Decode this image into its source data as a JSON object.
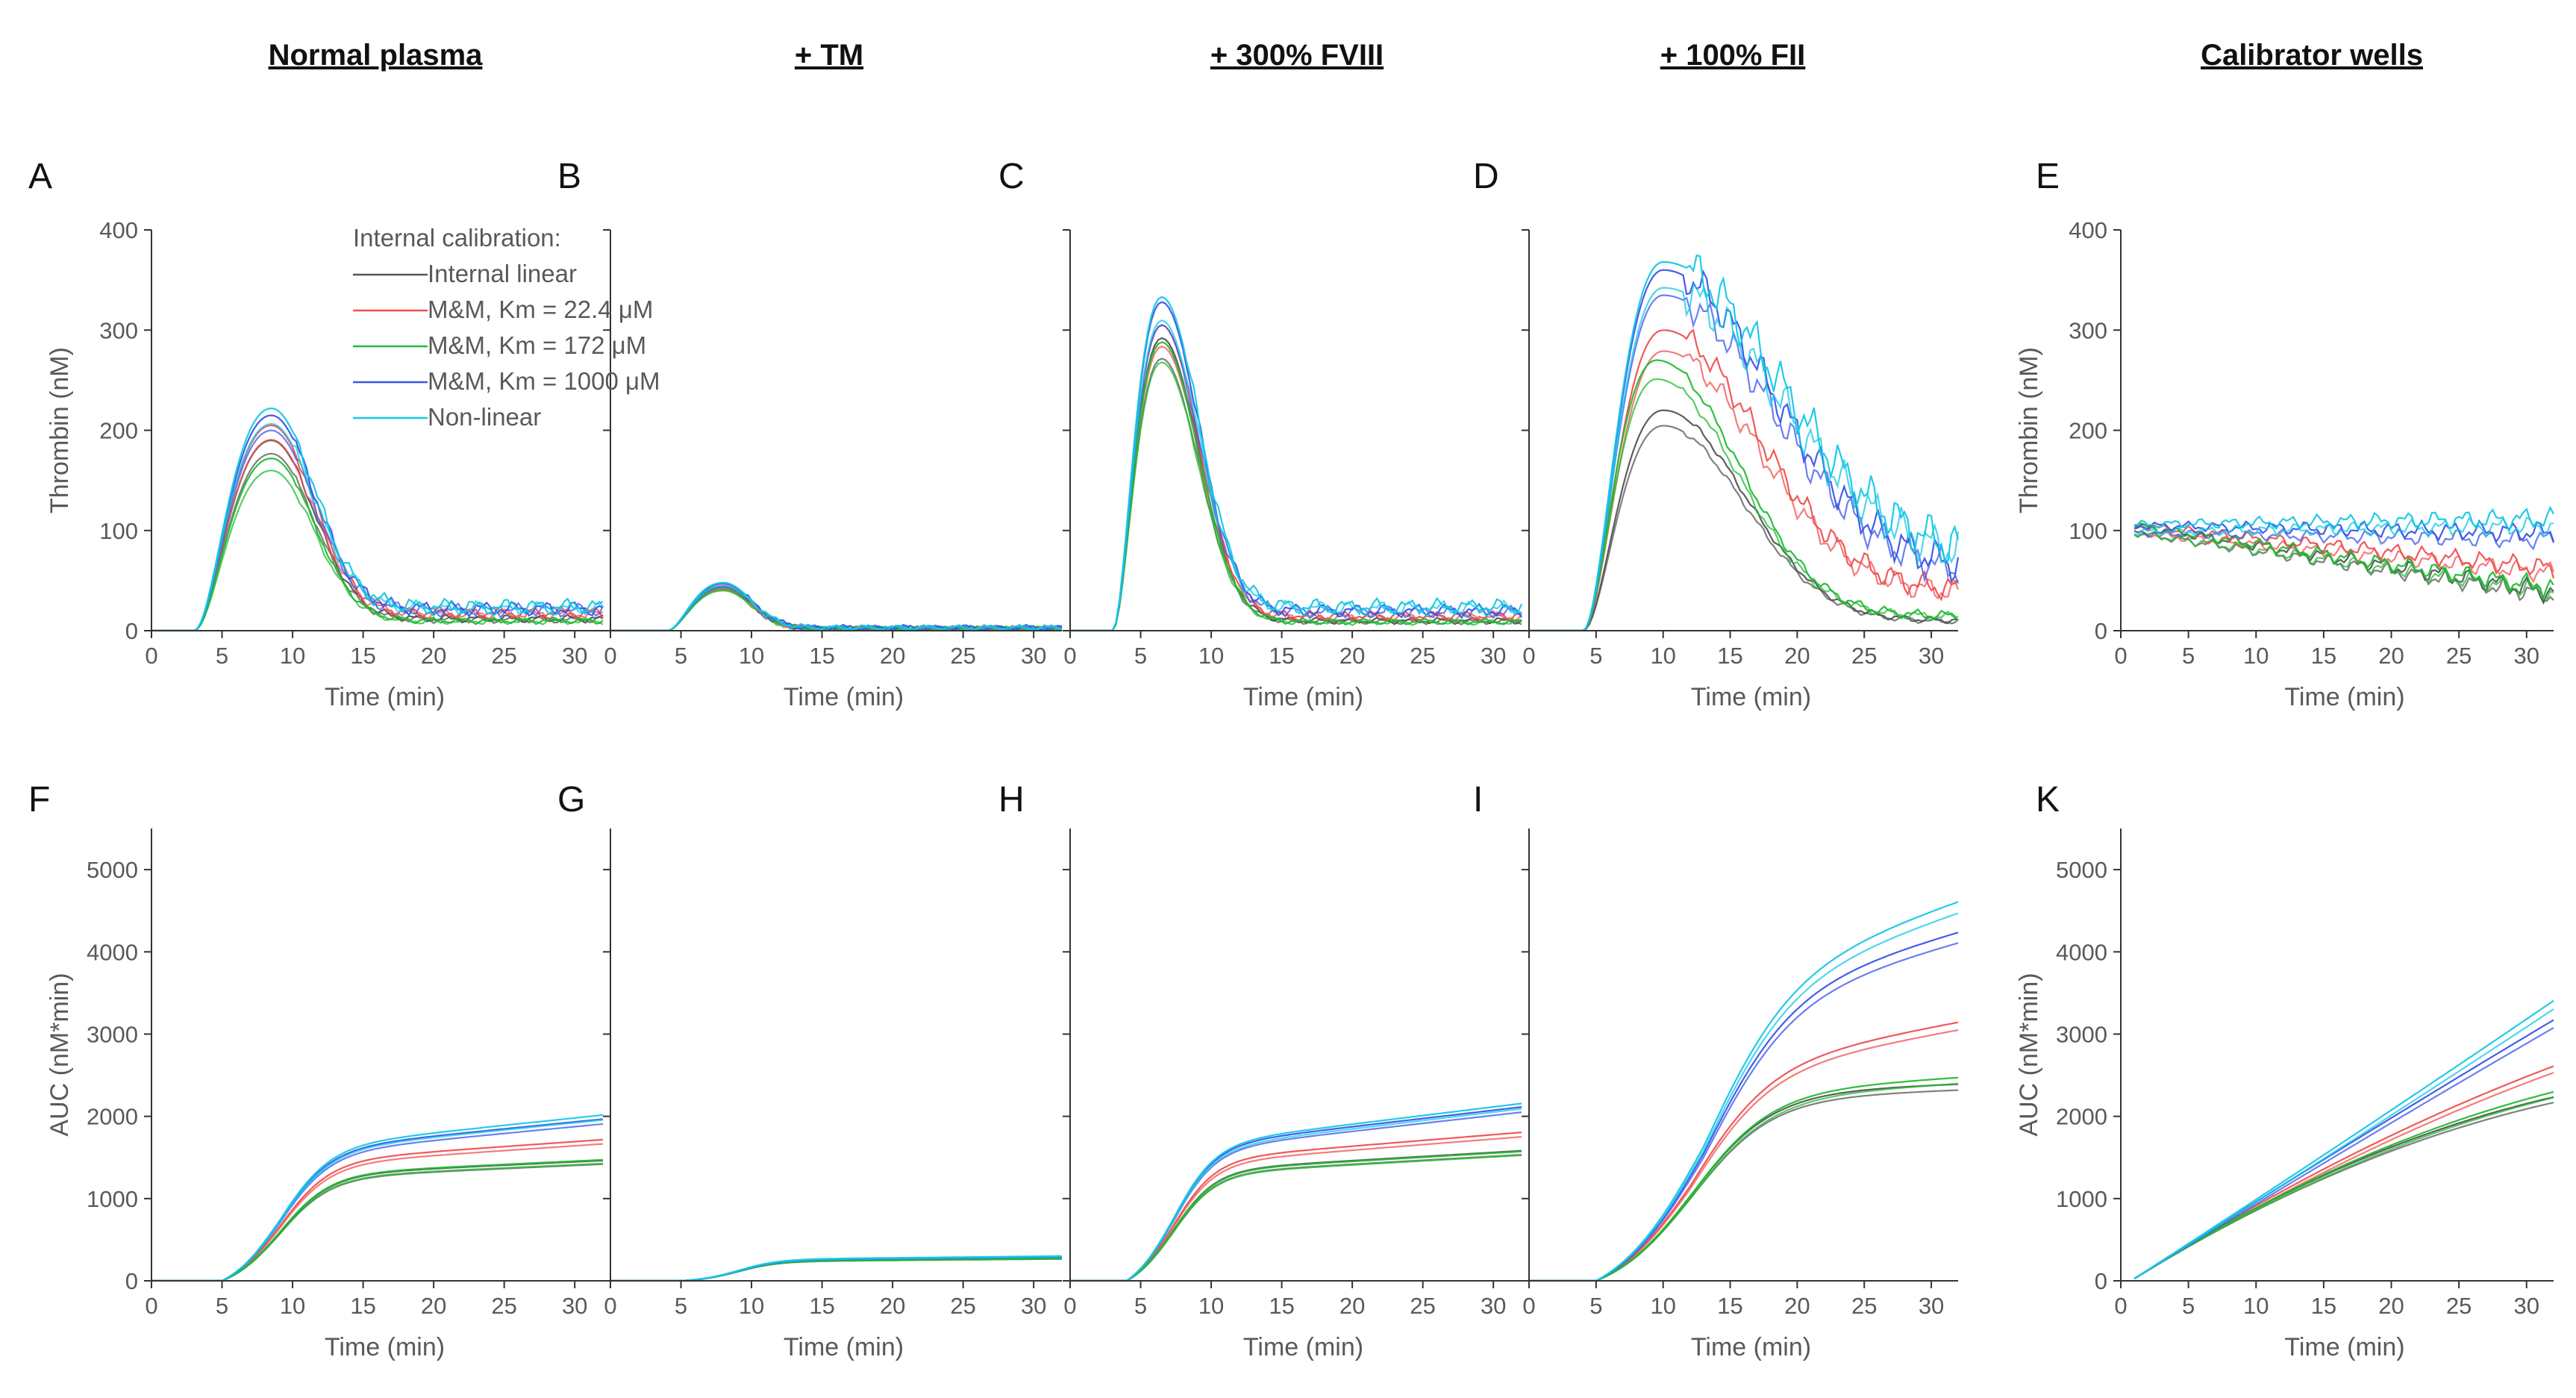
{
  "colors": {
    "internal_linear": "#555555",
    "mm_22_4": "#f05050",
    "mm_172": "#22bb33",
    "mm_1000": "#3a55e8",
    "non_linear": "#14c8e6"
  },
  "columns": [
    {
      "id": "normal",
      "title": "Normal plasma"
    },
    {
      "id": "tm",
      "title": "+ TM"
    },
    {
      "id": "fviii",
      "title": "+ 300% FVIII"
    },
    {
      "id": "fii",
      "title": "+ 100% FII"
    },
    {
      "id": "cal",
      "title": "Calibrator wells"
    }
  ],
  "legend": {
    "title": "Internal calibration:",
    "entries": [
      {
        "label": "Internal linear",
        "color": "#555555"
      },
      {
        "label": "M&M, Km = 22.4 μM",
        "color": "#f05050"
      },
      {
        "label": "M&M, Km = 172 μM",
        "color": "#22bb33"
      },
      {
        "label": "M&M, Km = 1000 μM",
        "color": "#3a55e8"
      },
      {
        "label": "Non-linear",
        "color": "#14c8e6"
      }
    ]
  },
  "chart_data": [
    {
      "panel": "A",
      "type": "line",
      "title": "Normal plasma",
      "xlabel": "Time (min)",
      "ylabel": "Thrombin (nM)",
      "xlim": [
        0,
        32
      ],
      "ylim": [
        0,
        400
      ],
      "xticks": [
        0,
        5,
        10,
        15,
        20,
        25,
        30
      ],
      "yticks": [
        0,
        100,
        200,
        300,
        400
      ],
      "show_yticks": true,
      "series": [
        {
          "name": "Internal linear",
          "color": "#555555",
          "kind": "peak",
          "peak": 190,
          "t0": 3,
          "tp": 8.5,
          "tail": 12,
          "rise": 3.2,
          "decay": 3.0
        },
        {
          "name": "M&M, Km = 22.4 μM",
          "color": "#f05050",
          "kind": "peak",
          "peak": 205,
          "t0": 3,
          "tp": 8.5,
          "tail": 18,
          "rise": 3.2,
          "decay": 3.0
        },
        {
          "name": "M&M, Km = 172 μM",
          "color": "#22bb33",
          "kind": "peak",
          "peak": 172,
          "t0": 3,
          "tp": 8.5,
          "tail": 10,
          "rise": 3.2,
          "decay": 3.0
        },
        {
          "name": "M&M, Km = 1000 μM",
          "color": "#3a55e8",
          "kind": "peak",
          "peak": 215,
          "t0": 3,
          "tp": 8.5,
          "tail": 22,
          "rise": 3.2,
          "decay": 3.0
        },
        {
          "name": "Non-linear",
          "color": "#14c8e6",
          "kind": "peak",
          "peak": 222,
          "t0": 3,
          "tp": 8.5,
          "tail": 24,
          "rise": 3.2,
          "decay": 3.0
        }
      ]
    },
    {
      "panel": "B",
      "type": "line",
      "title": "+ TM",
      "xlabel": "Time (min)",
      "ylabel": "",
      "xlim": [
        0,
        32
      ],
      "ylim": [
        0,
        400
      ],
      "xticks": [
        0,
        5,
        10,
        15,
        20,
        25,
        30
      ],
      "yticks": [
        0,
        100,
        200,
        300,
        400
      ],
      "show_yticks": false,
      "series": [
        {
          "name": "Internal linear",
          "color": "#555555",
          "kind": "peak",
          "peak": 44,
          "t0": 4,
          "tp": 8,
          "tail": 2,
          "rise": 2.5,
          "decay": 2.0
        },
        {
          "name": "M&M, Km = 22.4 μM",
          "color": "#f05050",
          "kind": "peak",
          "peak": 45,
          "t0": 4,
          "tp": 8,
          "tail": 2,
          "rise": 2.5,
          "decay": 2.0
        },
        {
          "name": "M&M, Km = 172 μM",
          "color": "#22bb33",
          "kind": "peak",
          "peak": 43,
          "t0": 4,
          "tp": 8,
          "tail": 2,
          "rise": 2.5,
          "decay": 2.0
        },
        {
          "name": "M&M, Km = 1000 μM",
          "color": "#3a55e8",
          "kind": "peak",
          "peak": 47,
          "t0": 4,
          "tp": 8,
          "tail": 3,
          "rise": 2.5,
          "decay": 2.0
        },
        {
          "name": "Non-linear",
          "color": "#14c8e6",
          "kind": "peak",
          "peak": 48,
          "t0": 4,
          "tp": 8,
          "tail": 3,
          "rise": 2.5,
          "decay": 2.0
        }
      ]
    },
    {
      "panel": "C",
      "type": "line",
      "title": "+ 300% FVIII",
      "xlabel": "Time (min)",
      "ylabel": "",
      "xlim": [
        0,
        32
      ],
      "ylim": [
        0,
        400
      ],
      "xticks": [
        0,
        5,
        10,
        15,
        20,
        25,
        30
      ],
      "yticks": [
        0,
        100,
        200,
        300,
        400
      ],
      "show_yticks": false,
      "series": [
        {
          "name": "Internal linear",
          "color": "#555555",
          "kind": "peak",
          "peak": 292,
          "t0": 3,
          "tp": 6.5,
          "tail": 10,
          "rise": 2.2,
          "decay": 2.6
        },
        {
          "name": "M&M, Km = 22.4 μM",
          "color": "#f05050",
          "kind": "peak",
          "peak": 305,
          "t0": 3,
          "tp": 6.5,
          "tail": 15,
          "rise": 2.2,
          "decay": 2.6
        },
        {
          "name": "M&M, Km = 172 μM",
          "color": "#22bb33",
          "kind": "peak",
          "peak": 288,
          "t0": 3,
          "tp": 6.5,
          "tail": 9,
          "rise": 2.2,
          "decay": 2.6
        },
        {
          "name": "M&M, Km = 1000 μM",
          "color": "#3a55e8",
          "kind": "peak",
          "peak": 328,
          "t0": 3,
          "tp": 6.5,
          "tail": 20,
          "rise": 2.2,
          "decay": 2.6
        },
        {
          "name": "Non-linear",
          "color": "#14c8e6",
          "kind": "peak",
          "peak": 333,
          "t0": 3,
          "tp": 6.5,
          "tail": 24,
          "rise": 2.2,
          "decay": 2.6
        }
      ]
    },
    {
      "panel": "D",
      "type": "line",
      "title": "+ 100% FII",
      "xlabel": "Time (min)",
      "ylabel": "",
      "xlim": [
        0,
        32
      ],
      "ylim": [
        0,
        400
      ],
      "xticks": [
        0,
        5,
        10,
        15,
        20,
        25,
        30
      ],
      "yticks": [
        0,
        100,
        200,
        300,
        400
      ],
      "show_yticks": false,
      "series": [
        {
          "name": "Internal linear",
          "color": "#555555",
          "kind": "peak",
          "peak": 220,
          "t0": 4,
          "tp": 10,
          "tail": 10,
          "rise": 3.5,
          "decay": 6.0
        },
        {
          "name": "M&M, Km = 22.4 μM",
          "color": "#f05050",
          "kind": "peak",
          "peak": 300,
          "t0": 4,
          "tp": 10,
          "tail": 40,
          "rise": 3.5,
          "decay": 7.0
        },
        {
          "name": "M&M, Km = 172 μM",
          "color": "#22bb33",
          "kind": "peak",
          "peak": 270,
          "t0": 4,
          "tp": 9.5,
          "tail": 15,
          "rise": 3.5,
          "decay": 6.0
        },
        {
          "name": "M&M, Km = 1000 μM",
          "color": "#3a55e8",
          "kind": "peak",
          "peak": 360,
          "t0": 4,
          "tp": 10,
          "tail": 60,
          "rise": 3.5,
          "decay": 8.0
        },
        {
          "name": "Non-linear",
          "color": "#14c8e6",
          "kind": "peak",
          "peak": 368,
          "t0": 4,
          "tp": 10,
          "tail": 75,
          "rise": 3.5,
          "decay": 8.5
        }
      ]
    },
    {
      "panel": "E",
      "type": "line",
      "title": "Calibrator wells",
      "xlabel": "Time (min)",
      "ylabel": "Thrombin (nM)",
      "xlim": [
        0,
        32
      ],
      "ylim": [
        0,
        400
      ],
      "xticks": [
        0,
        5,
        10,
        15,
        20,
        25,
        30
      ],
      "yticks": [
        0,
        100,
        200,
        300,
        400
      ],
      "show_yticks": true,
      "series": [
        {
          "name": "Internal linear",
          "color": "#555555",
          "kind": "linear",
          "start": 105,
          "end": 38,
          "x0": 1
        },
        {
          "name": "M&M, Km = 22.4 μM",
          "color": "#f05050",
          "kind": "linear",
          "start": 105,
          "end": 62,
          "x0": 1
        },
        {
          "name": "M&M, Km = 172 μM",
          "color": "#22bb33",
          "kind": "linear",
          "start": 105,
          "end": 42,
          "x0": 1
        },
        {
          "name": "M&M, Km = 1000 μM",
          "color": "#3a55e8",
          "kind": "linear",
          "start": 105,
          "end": 98,
          "x0": 1
        },
        {
          "name": "Non-linear",
          "color": "#14c8e6",
          "kind": "linear",
          "start": 106,
          "end": 112,
          "x0": 1
        }
      ]
    },
    {
      "panel": "F",
      "type": "line",
      "title": "Normal plasma",
      "xlabel": "Time (min)",
      "ylabel": "AUC (nM*min)",
      "xlim": [
        0,
        32
      ],
      "ylim": [
        0,
        5500
      ],
      "xticks": [
        0,
        5,
        10,
        15,
        20,
        25,
        30
      ],
      "yticks": [
        0,
        1000,
        2000,
        3000,
        4000,
        5000
      ],
      "show_yticks": true,
      "series": [
        {
          "name": "Internal linear",
          "color": "#555555",
          "kind": "auc",
          "final": 1420,
          "t0": 5,
          "t50": 9.0,
          "k": 0.55,
          "slope": 8
        },
        {
          "name": "M&M, Km = 22.4 μM",
          "color": "#f05050",
          "kind": "auc",
          "final": 1600,
          "t0": 5,
          "t50": 9.0,
          "k": 0.55,
          "slope": 12
        },
        {
          "name": "M&M, Km = 172 μM",
          "color": "#22bb33",
          "kind": "auc",
          "final": 1430,
          "t0": 5,
          "t50": 9.0,
          "k": 0.55,
          "slope": 8
        },
        {
          "name": "M&M, Km = 1000 μM",
          "color": "#3a55e8",
          "kind": "auc",
          "final": 1750,
          "t0": 5,
          "t50": 9.0,
          "k": 0.55,
          "slope": 17
        },
        {
          "name": "Non-linear",
          "color": "#14c8e6",
          "kind": "auc",
          "final": 1780,
          "t0": 5,
          "t50": 9.0,
          "k": 0.55,
          "slope": 18
        }
      ]
    },
    {
      "panel": "G",
      "type": "line",
      "title": "+ TM",
      "xlabel": "Time (min)",
      "ylabel": "",
      "xlim": [
        0,
        32
      ],
      "ylim": [
        0,
        5500
      ],
      "xticks": [
        0,
        5,
        10,
        15,
        20,
        25,
        30
      ],
      "yticks": [
        0,
        1000,
        2000,
        3000,
        4000,
        5000
      ],
      "show_yticks": false,
      "series": [
        {
          "name": "Internal linear",
          "color": "#555555",
          "kind": "auc",
          "final": 255,
          "t0": 5,
          "t50": 9.0,
          "k": 0.7,
          "slope": 1.5
        },
        {
          "name": "M&M, Km = 22.4 μM",
          "color": "#f05050",
          "kind": "auc",
          "final": 260,
          "t0": 5,
          "t50": 9.0,
          "k": 0.7,
          "slope": 1.5
        },
        {
          "name": "M&M, Km = 172 μM",
          "color": "#22bb33",
          "kind": "auc",
          "final": 255,
          "t0": 5,
          "t50": 9.0,
          "k": 0.7,
          "slope": 1.5
        },
        {
          "name": "M&M, Km = 1000 μM",
          "color": "#3a55e8",
          "kind": "auc",
          "final": 270,
          "t0": 5,
          "t50": 9.0,
          "k": 0.7,
          "slope": 1.8
        },
        {
          "name": "Non-linear",
          "color": "#14c8e6",
          "kind": "auc",
          "final": 275,
          "t0": 5,
          "t50": 9.0,
          "k": 0.7,
          "slope": 1.8
        }
      ]
    },
    {
      "panel": "H",
      "type": "line",
      "title": "+ 300% FVIII",
      "xlabel": "Time (min)",
      "ylabel": "",
      "xlim": [
        0,
        32
      ],
      "ylim": [
        0,
        5500
      ],
      "xticks": [
        0,
        5,
        10,
        15,
        20,
        25,
        30
      ],
      "yticks": [
        0,
        1000,
        2000,
        3000,
        4000,
        5000
      ],
      "show_yticks": false,
      "series": [
        {
          "name": "Internal linear",
          "color": "#555555",
          "kind": "auc",
          "final": 1500,
          "t0": 4,
          "t50": 7.2,
          "k": 0.65,
          "slope": 10
        },
        {
          "name": "M&M, Km = 22.4 μM",
          "color": "#f05050",
          "kind": "auc",
          "final": 1640,
          "t0": 4,
          "t50": 7.2,
          "k": 0.65,
          "slope": 14
        },
        {
          "name": "M&M, Km = 172 μM",
          "color": "#22bb33",
          "kind": "auc",
          "final": 1490,
          "t0": 4,
          "t50": 7.2,
          "k": 0.65,
          "slope": 10
        },
        {
          "name": "M&M, Km = 1000 μM",
          "color": "#3a55e8",
          "kind": "auc",
          "final": 1820,
          "t0": 4,
          "t50": 7.2,
          "k": 0.65,
          "slope": 20
        },
        {
          "name": "Non-linear",
          "color": "#14c8e6",
          "kind": "auc",
          "final": 1840,
          "t0": 4,
          "t50": 7.2,
          "k": 0.65,
          "slope": 21
        }
      ]
    },
    {
      "panel": "I",
      "type": "line",
      "title": "+ 100% FII",
      "xlabel": "Time (min)",
      "ylabel": "",
      "xlim": [
        0,
        32
      ],
      "ylim": [
        0,
        5500
      ],
      "xticks": [
        0,
        5,
        10,
        15,
        20,
        25,
        30
      ],
      "yticks": [
        0,
        1000,
        2000,
        3000,
        4000,
        5000
      ],
      "show_yticks": false,
      "series": [
        {
          "name": "Internal linear",
          "color": "#555555",
          "kind": "auc",
          "final": 2500,
          "t0": 5,
          "t50": 12.0,
          "k": 0.33,
          "slope": 6
        },
        {
          "name": "M&M, Km = 22.4 μM",
          "color": "#f05050",
          "kind": "auc",
          "final": 2800,
          "t0": 5,
          "t50": 12.0,
          "k": 0.33,
          "slope": 30
        },
        {
          "name": "M&M, Km = 172 μM",
          "color": "#22bb33",
          "kind": "auc",
          "final": 2500,
          "t0": 5,
          "t50": 12.0,
          "k": 0.33,
          "slope": 10
        },
        {
          "name": "M&M, Km = 1000 μM",
          "color": "#3a55e8",
          "kind": "auc",
          "final": 3700,
          "t0": 5,
          "t50": 13.0,
          "k": 0.3,
          "slope": 45
        },
        {
          "name": "Non-linear",
          "color": "#14c8e6",
          "kind": "auc",
          "final": 3900,
          "t0": 5,
          "t50": 13.0,
          "k": 0.3,
          "slope": 55
        }
      ]
    },
    {
      "panel": "K",
      "type": "line",
      "title": "Calibrator wells",
      "xlabel": "Time (min)",
      "ylabel": "AUC (nM*min)",
      "xlim": [
        0,
        32
      ],
      "ylim": [
        0,
        5500
      ],
      "xticks": [
        0,
        5,
        10,
        15,
        20,
        25,
        30
      ],
      "yticks": [
        0,
        1000,
        2000,
        3000,
        4000,
        5000
      ],
      "show_yticks": true,
      "series": [
        {
          "name": "Internal linear",
          "color": "#555555",
          "kind": "cum",
          "start": 105,
          "end": 38,
          "x0": 1
        },
        {
          "name": "M&M, Km = 22.4 μM",
          "color": "#f05050",
          "kind": "cum",
          "start": 105,
          "end": 62,
          "x0": 1
        },
        {
          "name": "M&M, Km = 172 μM",
          "color": "#22bb33",
          "kind": "cum",
          "start": 105,
          "end": 42,
          "x0": 1
        },
        {
          "name": "M&M, Km = 1000 μM",
          "color": "#3a55e8",
          "kind": "cum",
          "start": 105,
          "end": 98,
          "x0": 1
        },
        {
          "name": "Non-linear",
          "color": "#14c8e6",
          "kind": "cum",
          "start": 106,
          "end": 112,
          "x0": 1
        }
      ]
    }
  ]
}
